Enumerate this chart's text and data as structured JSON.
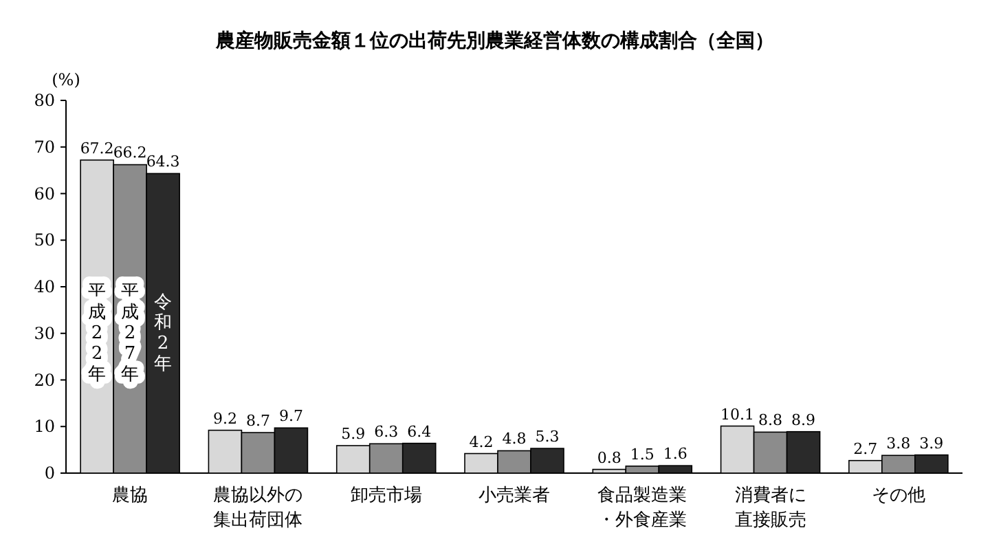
{
  "chart_data": {
    "type": "bar",
    "title": "農産物販売金額１位の出荷先別農業経営体数の構成割合（全国）",
    "ylabel": "(%)",
    "categories": [
      "農協",
      "農協以外の集出荷団体",
      "卸売市場",
      "小売業者",
      "食品製造業・外食産業",
      "消費者に直接販売",
      "その他"
    ],
    "series": [
      {
        "name": "平成22年",
        "color": "#d8d8d8",
        "values": [
          67.2,
          9.2,
          5.9,
          4.2,
          0.8,
          10.1,
          2.7
        ]
      },
      {
        "name": "平成27年",
        "color": "#8c8c8c",
        "values": [
          66.2,
          8.7,
          6.3,
          4.8,
          1.5,
          8.8,
          3.8
        ]
      },
      {
        "name": "令和2年",
        "color": "#2a2a2a",
        "values": [
          64.3,
          9.7,
          6.4,
          5.3,
          1.6,
          8.9,
          3.9
        ]
      }
    ],
    "ylim": [
      0,
      80
    ],
    "yticks": [
      0,
      10,
      20,
      30,
      40,
      50,
      60,
      70,
      80
    ],
    "data_labels": true,
    "grid": false,
    "legend": false
  }
}
